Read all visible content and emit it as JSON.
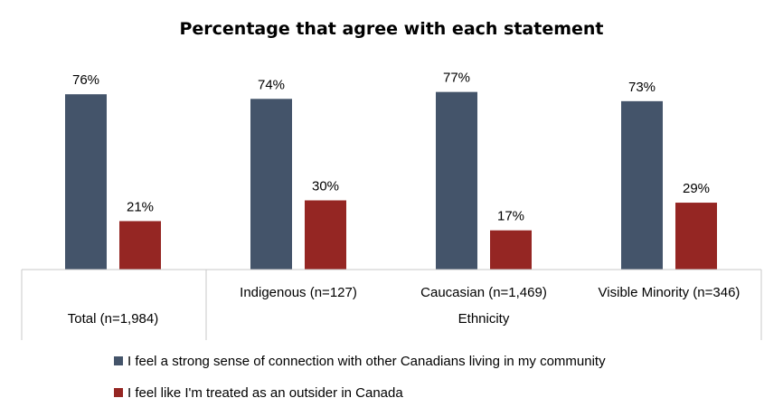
{
  "chart_data": {
    "type": "bar",
    "title": "Percentage that agree with each statement",
    "categories": [
      "Total (n=1,984)",
      "Indigenous (n=127)",
      "Caucasian (n=1,469)",
      "Visible Minority (n=346)"
    ],
    "group_label": "Ethnicity",
    "series": [
      {
        "name": "I feel a strong sense of connection with other Canadians living in my community",
        "values": [
          76,
          74,
          77,
          73
        ],
        "color": "#44546A"
      },
      {
        "name": "I feel like I'm treated as an outsider in Canada",
        "values": [
          21,
          30,
          17,
          29
        ],
        "color": "#952623"
      }
    ],
    "value_suffix": "%",
    "ylim": [
      0,
      100
    ],
    "grid": false,
    "legend_position": "bottom"
  }
}
